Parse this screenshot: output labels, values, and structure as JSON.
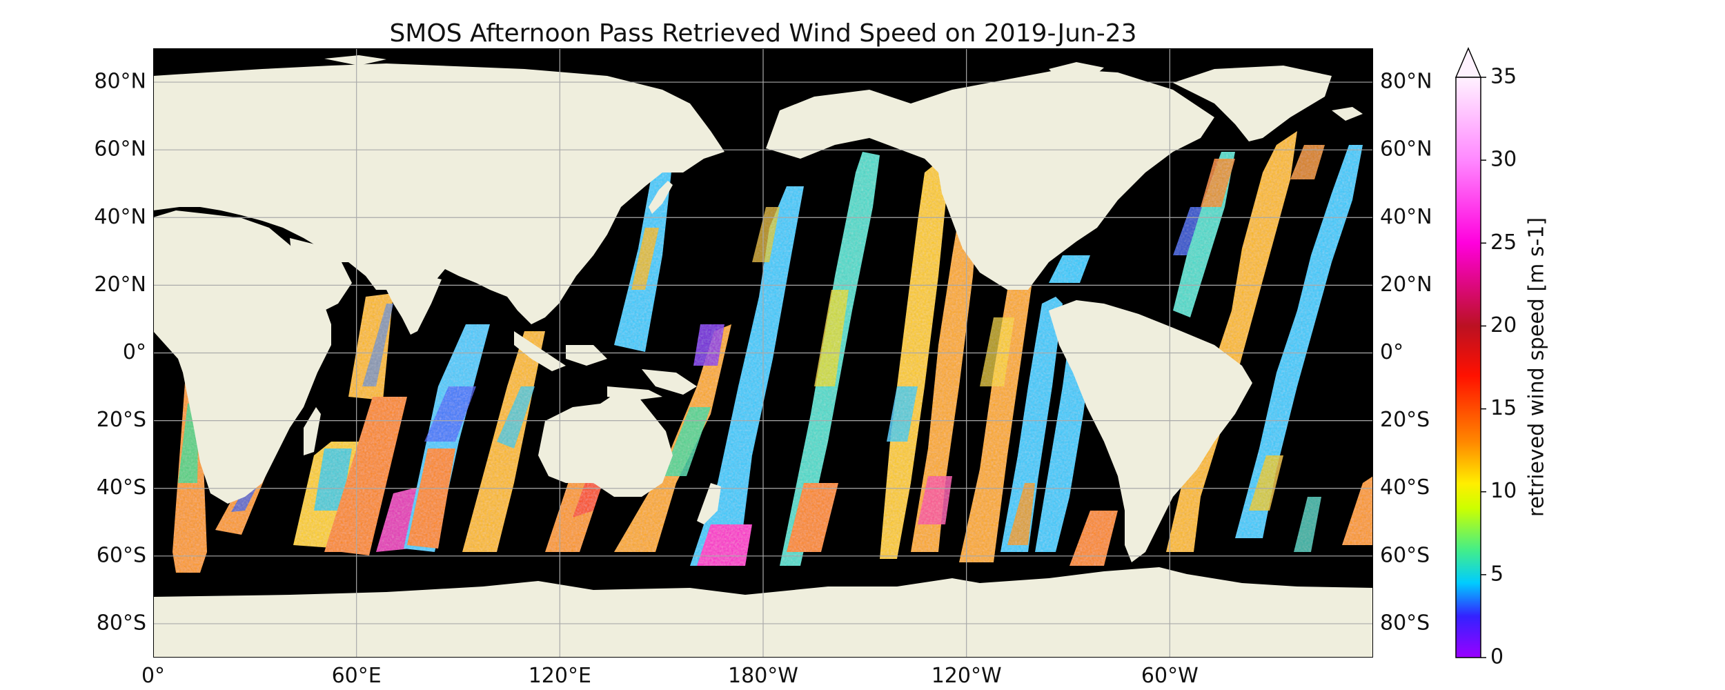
{
  "title": "SMOS Afternoon Pass Retrieved Wind Speed on 2019-Jun-23",
  "map": {
    "projection": "PlateCarree",
    "lon_range": [
      0,
      360
    ],
    "lat_range": [
      -90,
      90
    ],
    "ocean_nodata_color": "#000000",
    "land_color": "#efeedd",
    "gridlines": true,
    "lon_ticks": [
      {
        "lon": 0,
        "label": "0°"
      },
      {
        "lon": 60,
        "label": "60°E"
      },
      {
        "lon": 120,
        "label": "120°E"
      },
      {
        "lon": 180,
        "label": "180°W"
      },
      {
        "lon": 240,
        "label": "120°W"
      },
      {
        "lon": 300,
        "label": "60°W"
      }
    ],
    "lat_ticks": [
      {
        "lat": 80,
        "label": "80°N"
      },
      {
        "lat": 60,
        "label": "60°N"
      },
      {
        "lat": 40,
        "label": "40°N"
      },
      {
        "lat": 20,
        "label": "20°N"
      },
      {
        "lat": 0,
        "label": "0°"
      },
      {
        "lat": -20,
        "label": "20°S"
      },
      {
        "lat": -40,
        "label": "40°S"
      },
      {
        "lat": -60,
        "label": "60°S"
      },
      {
        "lat": -80,
        "label": "80°S"
      }
    ]
  },
  "colorbar": {
    "label": "retrieved wind speed [m s-1]",
    "min": 0,
    "max": 35,
    "extend": "max",
    "ticks": [
      {
        "value": 0,
        "label": "0"
      },
      {
        "value": 5,
        "label": "5"
      },
      {
        "value": 10,
        "label": "10"
      },
      {
        "value": 15,
        "label": "15"
      },
      {
        "value": 20,
        "label": "20"
      },
      {
        "value": 25,
        "label": "25"
      },
      {
        "value": 30,
        "label": "30"
      },
      {
        "value": 35,
        "label": "35"
      }
    ],
    "stops": [
      {
        "value": 0,
        "color": "#9a00ff"
      },
      {
        "value": 2.5,
        "color": "#3322ff"
      },
      {
        "value": 4.5,
        "color": "#00ccff"
      },
      {
        "value": 6.5,
        "color": "#44ee88"
      },
      {
        "value": 9,
        "color": "#ccff00"
      },
      {
        "value": 10.5,
        "color": "#ffee00"
      },
      {
        "value": 13,
        "color": "#ff8800"
      },
      {
        "value": 17,
        "color": "#ff1100"
      },
      {
        "value": 20,
        "color": "#bb1122"
      },
      {
        "value": 25,
        "color": "#ff00dd"
      },
      {
        "value": 30,
        "color": "#ff88ff"
      },
      {
        "value": 35,
        "color": "#fff2ff"
      }
    ]
  }
}
